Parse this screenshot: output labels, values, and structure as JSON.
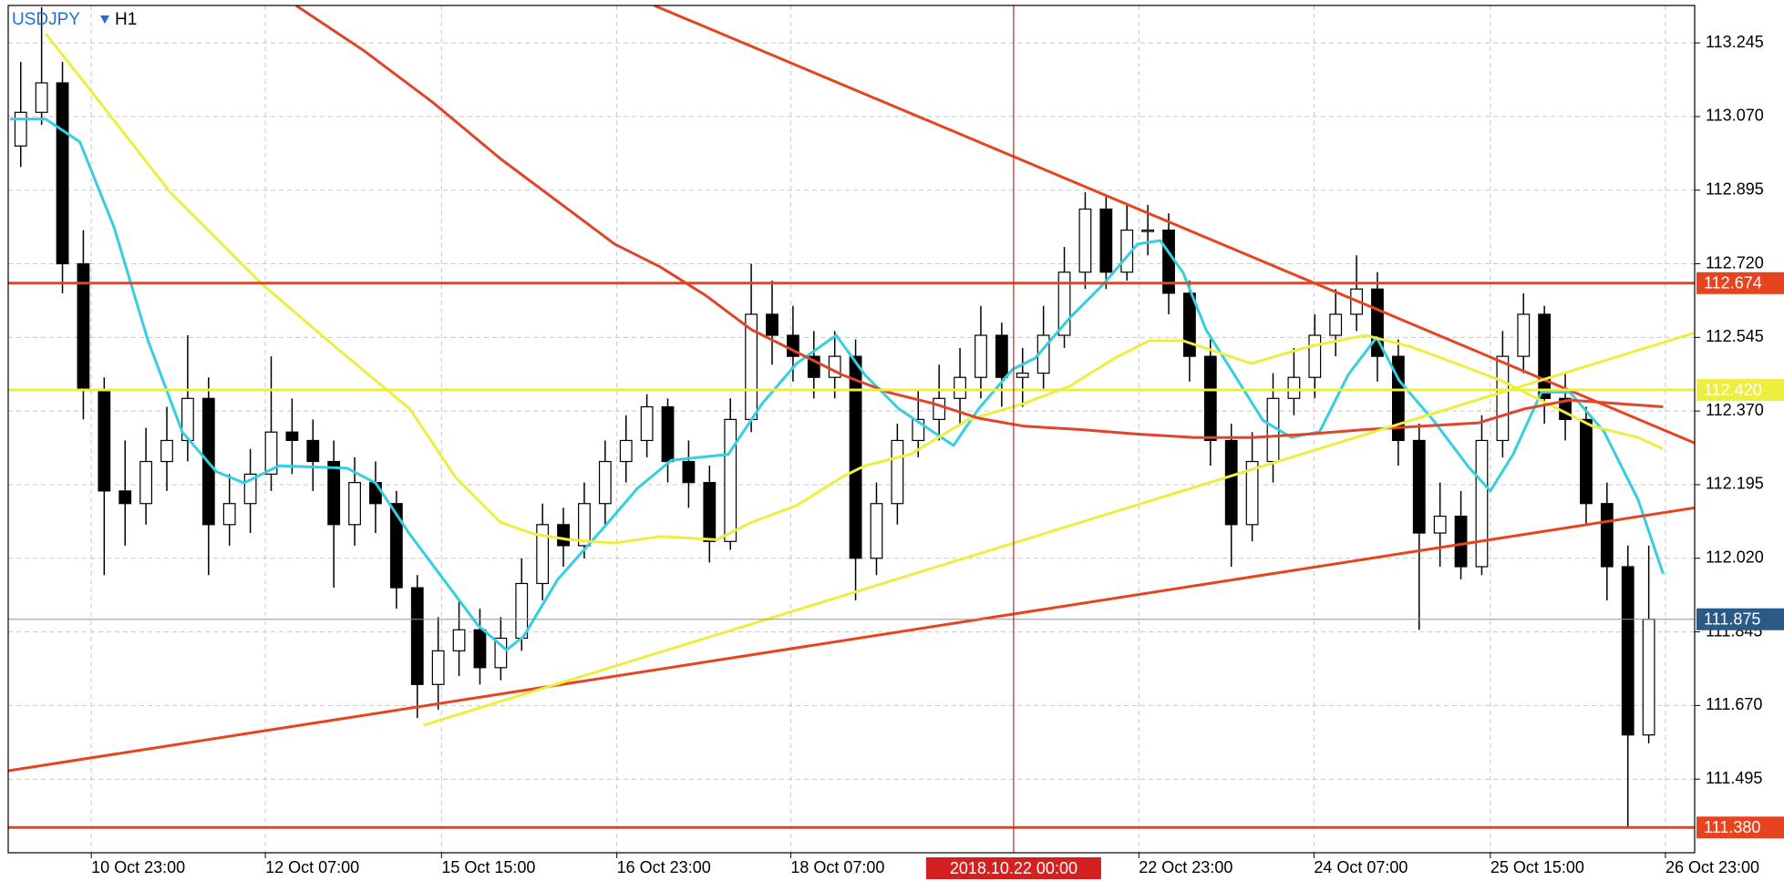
{
  "chart_data": {
    "type": "candlestick",
    "symbol": "USDJPY",
    "timeframe": "H1",
    "open": [
      113,
      113.08,
      113.15,
      112.72,
      112.42,
      112.18,
      112.15,
      112.25,
      112.3,
      112.4,
      112.1,
      112.15,
      112.22,
      112.32,
      112.3,
      112.25,
      112.1,
      112.2,
      112.15,
      111.95,
      111.72,
      111.8,
      111.85,
      111.76,
      111.83,
      111.96,
      112.1,
      112.05,
      112.15,
      112.25,
      112.3,
      112.38,
      112.25,
      112.2,
      112.06,
      112.35,
      112.6,
      112.55,
      112.5,
      112.45,
      112.5,
      112.02,
      112.15,
      112.3,
      112.35,
      112.4,
      112.45,
      112.55,
      112.45,
      112.46,
      112.55,
      112.7,
      112.85,
      112.7,
      112.8,
      112.8,
      112.65,
      112.5,
      112.3,
      112.1,
      112.25,
      112.4,
      112.45,
      112.55,
      112.6,
      112.66,
      112.5,
      112.3,
      112.08,
      112.12,
      112,
      112.3,
      112.5,
      112.6,
      112.4,
      112.35,
      112.15,
      112,
      111.6
    ],
    "high": [
      113.2,
      113.33,
      113.2,
      112.8,
      112.45,
      112.3,
      112.33,
      112.38,
      112.55,
      112.45,
      112.22,
      112.28,
      112.5,
      112.4,
      112.35,
      112.3,
      112.26,
      112.25,
      112.18,
      111.98,
      111.88,
      111.92,
      111.9,
      111.88,
      112.02,
      112.15,
      112.14,
      112.2,
      112.3,
      112.36,
      112.41,
      112.4,
      112.3,
      112.24,
      112.4,
      112.72,
      112.68,
      112.62,
      112.56,
      112.56,
      112.54,
      112.2,
      112.34,
      112.42,
      112.48,
      112.52,
      112.62,
      112.58,
      112.52,
      112.62,
      112.76,
      112.89,
      112.88,
      112.86,
      112.86,
      112.84,
      112.68,
      112.54,
      112.34,
      112.32,
      112.46,
      112.52,
      112.6,
      112.66,
      112.74,
      112.7,
      112.54,
      112.34,
      112.2,
      112.18,
      112.36,
      112.56,
      112.65,
      112.62,
      112.46,
      112.38,
      112.2,
      112.05,
      112.05
    ],
    "low": [
      112.95,
      113.05,
      112.65,
      112.35,
      111.98,
      112.05,
      112.1,
      112.18,
      112.25,
      111.98,
      112.05,
      112.08,
      112.18,
      112.22,
      112.18,
      111.95,
      112.05,
      112.08,
      111.9,
      111.64,
      111.66,
      111.74,
      111.72,
      111.73,
      111.8,
      111.92,
      112,
      112.02,
      112.1,
      112.2,
      112.26,
      112.2,
      112.14,
      112.01,
      112.04,
      112.32,
      112.48,
      112.44,
      112.4,
      112.4,
      111.92,
      111.98,
      112.1,
      112.26,
      112.3,
      112.34,
      112.4,
      112.38,
      112.38,
      112.42,
      112.52,
      112.66,
      112.66,
      112.68,
      112.74,
      112.6,
      112.44,
      112.24,
      112,
      112.06,
      112.2,
      112.36,
      112.4,
      112.5,
      112.56,
      112.44,
      112.24,
      111.85,
      112,
      111.97,
      111.98,
      112.26,
      112.46,
      112.34,
      112.3,
      112.1,
      111.92,
      111.38,
      111.58
    ],
    "close": [
      113.08,
      113.15,
      112.72,
      112.42,
      112.18,
      112.15,
      112.25,
      112.3,
      112.4,
      112.1,
      112.15,
      112.22,
      112.32,
      112.3,
      112.25,
      112.1,
      112.2,
      112.15,
      111.95,
      111.72,
      111.8,
      111.85,
      111.76,
      111.83,
      111.96,
      112.1,
      112.05,
      112.15,
      112.25,
      112.3,
      112.38,
      112.25,
      112.2,
      112.06,
      112.35,
      112.6,
      112.55,
      112.5,
      112.45,
      112.5,
      112.02,
      112.15,
      112.3,
      112.35,
      112.4,
      112.45,
      112.55,
      112.45,
      112.46,
      112.55,
      112.7,
      112.85,
      112.7,
      112.8,
      112.8,
      112.65,
      112.5,
      112.3,
      112.1,
      112.25,
      112.4,
      112.45,
      112.55,
      112.6,
      112.66,
      112.5,
      112.3,
      112.08,
      112.12,
      112,
      112.3,
      112.5,
      112.6,
      112.4,
      112.35,
      112.15,
      112,
      111.6,
      111.875
    ],
    "up_color": "#ffffff",
    "down_color": "#000000",
    "xlim": [
      -0.6,
      80.2
    ],
    "ylim": [
      111.32,
      113.334
    ],
    "xticks": [
      {
        "value": 3.38,
        "label": "10 Oct 23:00"
      },
      {
        "value": 11.72,
        "label": "12 Oct 07:00"
      },
      {
        "value": 20.16,
        "label": "15 Oct 15:00"
      },
      {
        "value": 28.56,
        "label": "16 Oct 23:00"
      },
      {
        "value": 36.89,
        "label": "18 Oct 07:00"
      },
      {
        "value": 53.57,
        "label": "22 Oct 23:00"
      },
      {
        "value": 61.96,
        "label": "24 Oct 07:00"
      },
      {
        "value": 70.41,
        "label": "25 Oct 15:00"
      },
      {
        "value": 78.8,
        "label": "26 Oct 23:00"
      }
    ],
    "yticks": [
      113.245,
      {
        "value": 113.07,
        "label": "113.070"
      },
      112.895,
      {
        "value": 112.72,
        "label": "112.720"
      },
      112.545,
      {
        "value": 112.37,
        "label": "112.370"
      },
      112.195,
      {
        "value": 112.02,
        "label": "112.020"
      },
      111.845,
      {
        "value": 111.67,
        "label": "111.670"
      },
      111.495
    ],
    "grid": true,
    "overlays": [
      {
        "color": "#34cfe0",
        "x": [
          -0.5,
          1.2,
          2.83,
          4.47,
          6.1,
          7.74,
          9.37,
          10.7,
          12.37,
          15.64,
          17,
          18.64,
          20.27,
          21.9,
          23.27,
          24.09,
          25.72,
          27.9,
          29.54,
          31.17,
          33.9,
          35.53,
          37.17,
          39.07,
          40.44,
          42.07,
          44.69,
          45.89,
          47.52,
          48.61,
          50.25,
          51.88,
          53.51,
          54.6,
          55.69,
          56.78,
          58.15,
          59.51,
          60.87,
          62.23,
          63.6,
          64.96,
          66.05,
          67.68,
          69.32,
          70.41,
          71.5,
          72.86,
          74.22,
          75.86,
          77.49,
          78.69
        ],
        "values": [
          113.064,
          113.064,
          113.01,
          112.807,
          112.537,
          112.32,
          112.226,
          112.199,
          112.24,
          112.234,
          112.199,
          112.077,
          111.969,
          111.861,
          111.802,
          111.834,
          111.969,
          112.091,
          112.186,
          112.253,
          112.267,
          112.388,
          112.483,
          112.55,
          112.456,
          112.375,
          112.288,
          112.375,
          112.469,
          112.496,
          112.591,
          112.672,
          112.767,
          112.775,
          112.699,
          112.564,
          112.456,
          112.348,
          112.307,
          112.321,
          112.456,
          112.545,
          112.442,
          112.348,
          112.24,
          112.18,
          112.267,
          112.415,
          112.415,
          112.321,
          112.159,
          111.983
        ]
      },
      {
        "color": "#eeee40",
        "x": [
          1.2,
          3.38,
          7.19,
          11.55,
          15.37,
          18.64,
          20.82,
          23,
          24.63,
          26.27,
          28.45,
          30.63,
          33.35,
          34.99,
          37.17,
          39.35,
          40.44,
          42.62,
          45.34,
          48.07,
          50.25,
          52.43,
          54.06,
          55.69,
          57.33,
          58.96,
          61.69,
          64.41,
          66.59,
          68.77,
          70.95,
          73.13,
          75.31,
          77.49,
          78.69
        ],
        "values": [
          113.267,
          113.13,
          112.888,
          112.672,
          112.51,
          112.375,
          112.213,
          112.105,
          112.077,
          112.064,
          112.056,
          112.072,
          112.064,
          112.105,
          112.145,
          112.213,
          112.24,
          112.267,
          112.348,
          112.388,
          112.429,
          112.496,
          112.537,
          112.537,
          112.51,
          112.483,
          112.523,
          112.55,
          112.523,
          112.483,
          112.442,
          112.388,
          112.334,
          112.307,
          112.28
        ]
      },
      {
        "color": "#e0442a",
        "x": [
          13.19,
          16.46,
          19.73,
          23,
          26.27,
          28.45,
          30.63,
          32.81,
          34.99,
          37.17,
          39.35,
          41.53,
          43.71,
          45.89,
          48.07,
          50.79,
          53.51,
          56.24,
          58.96,
          61.69,
          64.41,
          67.14,
          69.86,
          72.04,
          74.22,
          76.4,
          78.69
        ],
        "values": [
          113.334,
          113.226,
          113.104,
          112.969,
          112.848,
          112.767,
          112.713,
          112.645,
          112.564,
          112.51,
          112.456,
          112.415,
          112.388,
          112.353,
          112.334,
          112.326,
          112.315,
          112.307,
          112.307,
          112.315,
          112.326,
          112.334,
          112.342,
          112.375,
          112.396,
          112.388,
          112.38
        ]
      }
    ],
    "trendlines": [
      {
        "color": "#e8431f",
        "x": [
          30.35,
          80.2
        ],
        "values": [
          113.334,
          112.294
        ]
      },
      {
        "color": "#e8431f",
        "x": [
          -0.6,
          80.2
        ],
        "values": [
          111.515,
          112.14
        ]
      },
      {
        "color": "#eeee40",
        "x": [
          19.29,
          80.2
        ],
        "values": [
          111.623,
          112.556
        ]
      }
    ],
    "hlines": {
      "values": [
        112.674,
        112.42,
        111.38,
        111.875
      ],
      "value_labels": [
        null,
        "112.420",
        "111.380",
        null
      ],
      "colors": [
        "#e8431f",
        "#eeee40",
        "#e8431f",
        "#7f9bb8"
      ],
      "label_colors": [
        "#e8431f",
        "#eeee40",
        "#e8431f",
        "#2b5a87"
      ],
      "widths": [
        3,
        3,
        3,
        1
      ]
    },
    "crosshair": {
      "x": 47.57,
      "label": "2018.10.22 00:00",
      "color": "#d42020"
    }
  }
}
